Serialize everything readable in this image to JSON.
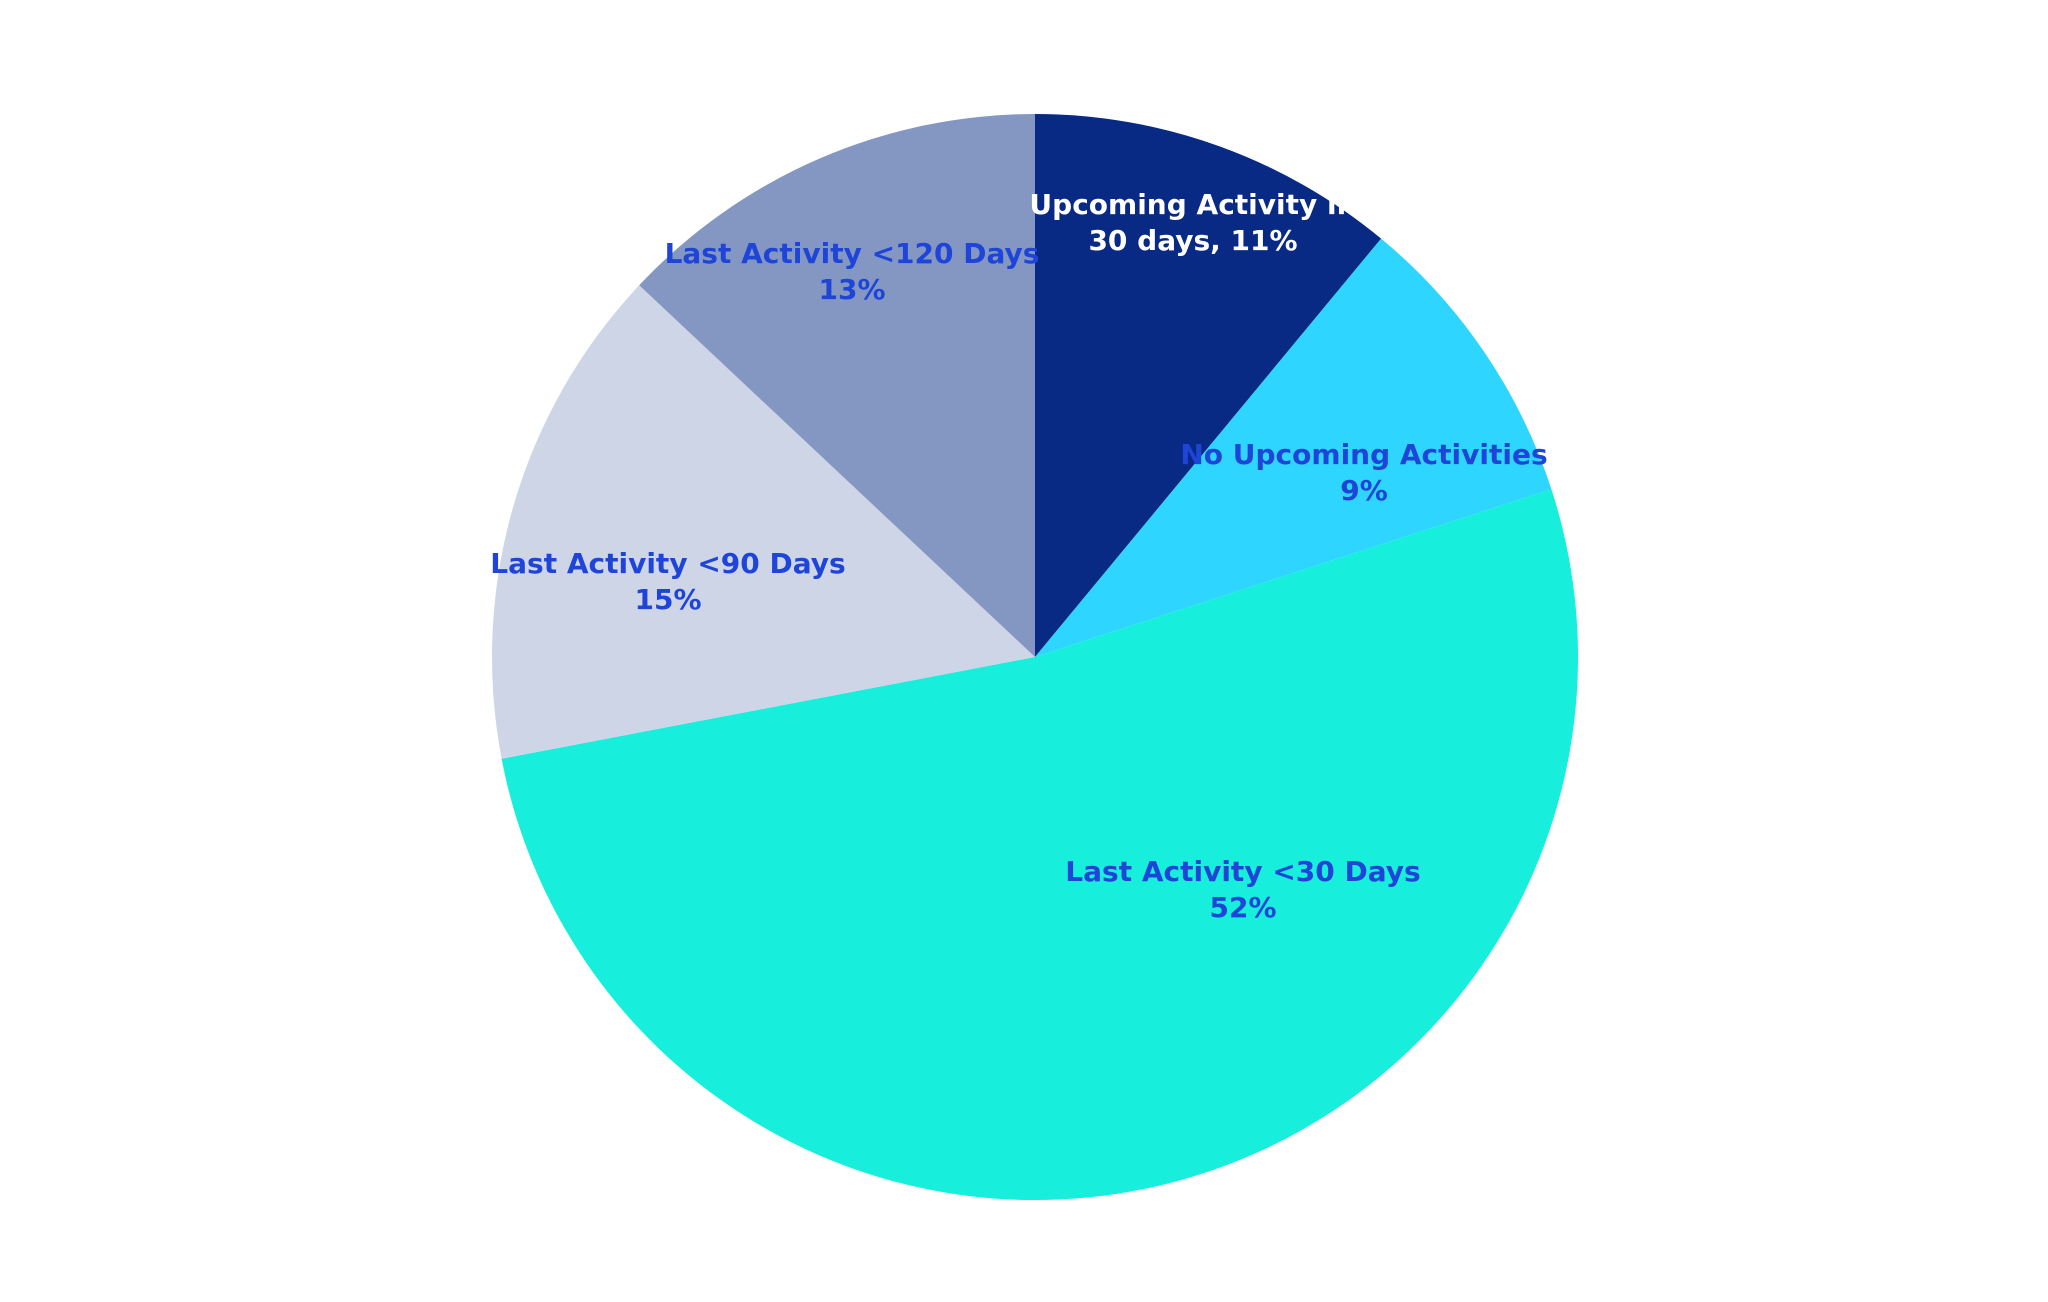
{
  "chart_data": {
    "type": "pie",
    "start_angle_deg": 0,
    "direction": "clockwise",
    "slices": [
      {
        "name": "Upcoming Activity in 30 days",
        "value": 11,
        "label_lines": [
          "Upcoming Activity in",
          "30 days,  11%"
        ],
        "color": "#082A85",
        "label_color": "#FFFFFF"
      },
      {
        "name": "No Upcoming Activities",
        "value": 9,
        "label_lines": [
          "No Upcoming Activities",
          "9%"
        ],
        "color": "#2ED5FF",
        "label_color": "#1E44D8"
      },
      {
        "name": "Last Activity <30 Days",
        "value": 52,
        "label_lines": [
          "Last Activity <30 Days",
          "52%"
        ],
        "color": "#18EEDC",
        "label_color": "#1E44D8"
      },
      {
        "name": "Last Activity <90 Days",
        "value": 15,
        "label_lines": [
          "Last Activity <90 Days",
          "15%"
        ],
        "color": "#CDD5E7",
        "label_color": "#1E44D8"
      },
      {
        "name": "Last Activity <120 Days",
        "value": 13,
        "label_lines": [
          "Last Activity <120 Days",
          "13%"
        ],
        "color": "#8497C3",
        "label_color": "#1E44D8"
      }
    ]
  }
}
